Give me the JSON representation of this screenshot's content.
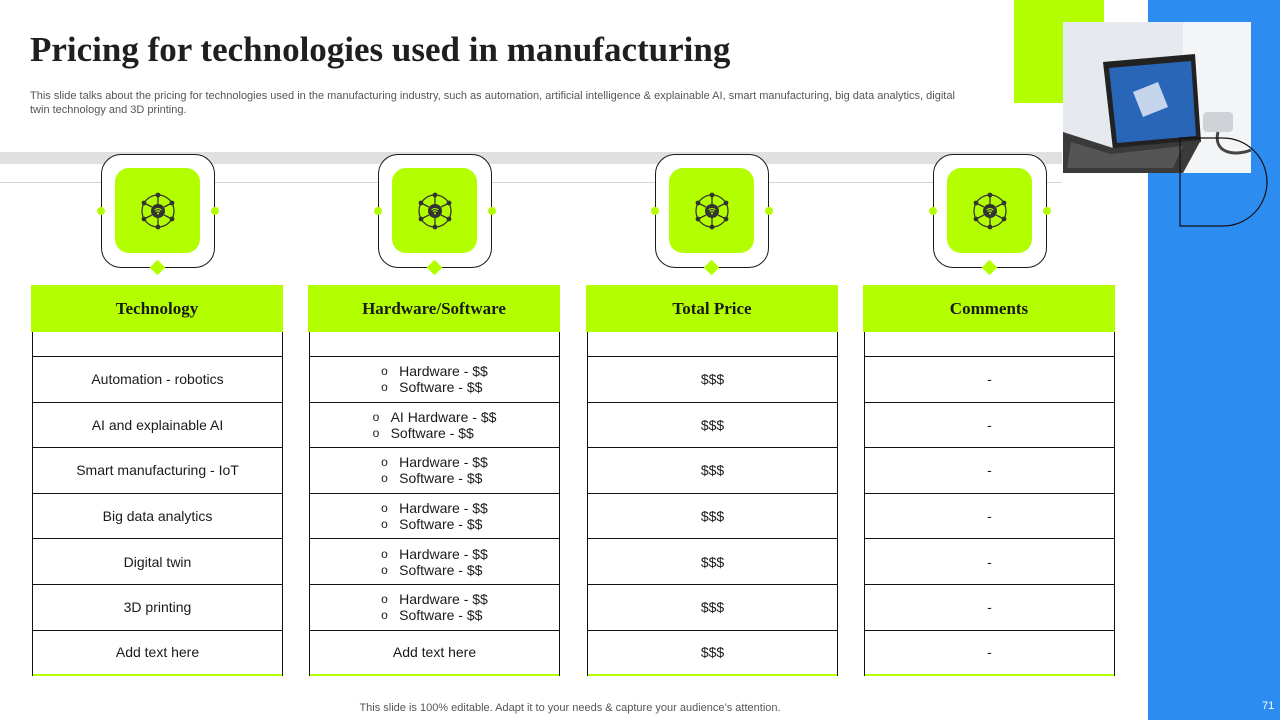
{
  "title": "Pricing for technologies used in manufacturing",
  "subtitle": "This slide talks about the pricing for technologies used in the manufacturing industry, such as automation, artificial intelligence & explainable AI, smart manufacturing, big data analytics, digital twin technology and 3D printing.",
  "icons": [
    "network-hub-icon",
    "network-hub-icon",
    "network-hub-icon",
    "network-hub-icon"
  ],
  "columns": {
    "technology": {
      "header": "Technology",
      "rows": [
        "Automation - robotics",
        "AI and explainable AI",
        "Smart manufacturing - IoT",
        "Big data analytics",
        "Digital twin",
        "3D printing",
        "Add text here"
      ]
    },
    "hardware_software": {
      "header": "Hardware/Software",
      "rows": [
        [
          "Hardware - $$",
          "Software - $$"
        ],
        [
          "AI Hardware - $$",
          "Software - $$"
        ],
        [
          "Hardware - $$",
          "Software - $$"
        ],
        [
          "Hardware - $$",
          "Software - $$"
        ],
        [
          "Hardware - $$",
          "Software - $$"
        ],
        [
          "Hardware - $$",
          "Software - $$"
        ]
      ],
      "last_row": "Add text here"
    },
    "total_price": {
      "header": "Total Price",
      "rows": [
        "$$$",
        "$$$",
        "$$$",
        "$$$",
        "$$$",
        "$$$",
        "$$$"
      ]
    },
    "comments": {
      "header": "Comments",
      "rows": [
        "-",
        "-",
        "-",
        "-",
        "-",
        "-",
        "-"
      ]
    }
  },
  "footer": "This slide is 100% editable. Adapt it to your needs & capture your audience’s attention.",
  "page_number": "71",
  "colors": {
    "accent_green": "#b3ff00",
    "accent_blue": "#2d8cf0",
    "dark": "#1a1a1a"
  }
}
